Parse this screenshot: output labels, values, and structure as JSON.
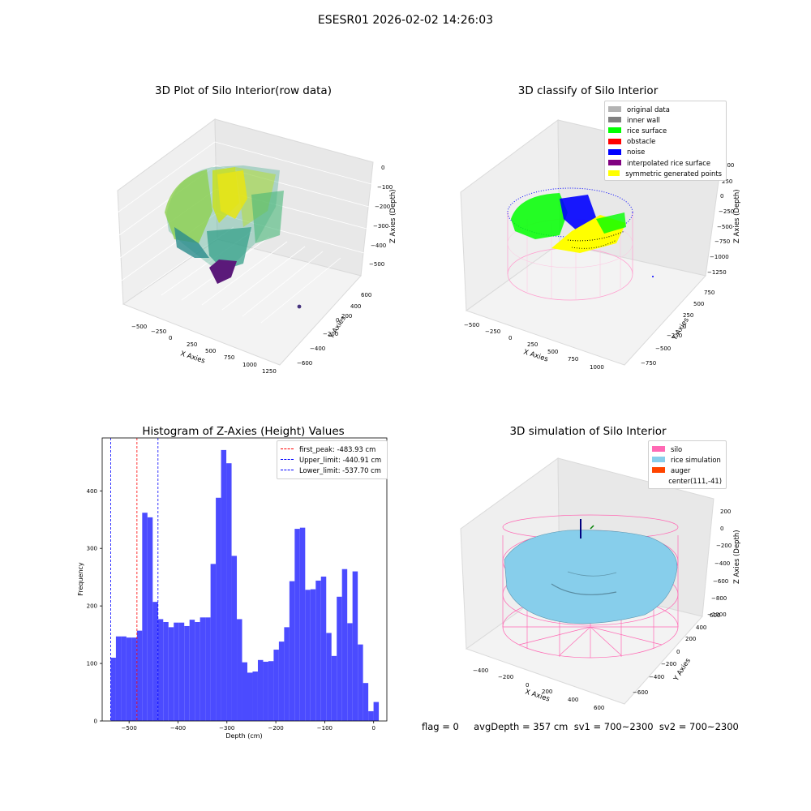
{
  "title": "ESESR01 2026-02-02 14:26:03",
  "status": {
    "text": "flag = 0     avgDepth = 357 cm  sv1 = 700~2300  sv2 = 700~2300"
  },
  "panels": {
    "raw": {
      "title": "3D Plot of Silo Interior(row data)",
      "xlabel": "X Axies",
      "ylabel": "Y Axies",
      "zlabel": "Z Axies (Depth)",
      "xticks": [
        "−500",
        "−250",
        "0",
        "250",
        "500",
        "750",
        "1000",
        "1250"
      ],
      "yticks": [
        "−600",
        "−400",
        "−200",
        "0",
        "200",
        "400",
        "600"
      ],
      "zticks": [
        "0",
        "−100",
        "−200",
        "−300",
        "−400",
        "−500"
      ]
    },
    "classify": {
      "title": "3D classify of Silo Interior",
      "xlabel": "X Axies",
      "ylabel": "Y Axies",
      "zlabel": "Z Axies (Depth)",
      "xticks": [
        "−500",
        "−250",
        "0",
        "250",
        "500",
        "750",
        "1000"
      ],
      "yticks": [
        "−750",
        "−500",
        "−250",
        "0",
        "250",
        "500",
        "750"
      ],
      "zticks": [
        "500",
        "250",
        "0",
        "−250",
        "−500",
        "−750",
        "−1000",
        "−1250"
      ],
      "legend": [
        {
          "label": "original data",
          "color": "#b3b3b3"
        },
        {
          "label": "inner wall",
          "color": "#808080"
        },
        {
          "label": "rice surface",
          "color": "#00ff00"
        },
        {
          "label": "obstacle",
          "color": "#ff0000"
        },
        {
          "label": "noise",
          "color": "#0000ff"
        },
        {
          "label": "interpolated rice surface",
          "color": "#800080"
        },
        {
          "label": "symmetric generated points",
          "color": "#ffff00"
        }
      ]
    },
    "simulation": {
      "title": "3D simulation of Silo Interior",
      "xlabel": "X Axies",
      "ylabel": "Y Axies",
      "zlabel": "Z Axies (Depth)",
      "xticks": [
        "−400",
        "−200",
        "0",
        "200",
        "400",
        "600"
      ],
      "yticks": [
        "−600",
        "−400",
        "−200",
        "0",
        "200",
        "400",
        "600"
      ],
      "zticks": [
        "200",
        "0",
        "−200",
        "−400",
        "−600",
        "−800",
        "−1000"
      ],
      "legend": [
        {
          "label": "silo",
          "color": "#ff69b4"
        },
        {
          "label": "rice simulation",
          "color": "#87ceeb"
        },
        {
          "label": "auger",
          "color": "#ff4500"
        },
        {
          "label": "center(111,-41)",
          "color": ""
        }
      ]
    }
  },
  "chart_data": [
    {
      "type": "bar",
      "title": "Histogram of Z-Axies (Height) Values",
      "xlabel": "Depth (cm)",
      "ylabel": "Frequency",
      "xlim": [
        -555,
        27
      ],
      "ylim": [
        0,
        492
      ],
      "xticks": [
        -500,
        -400,
        -300,
        -200,
        -100,
        0
      ],
      "xtick_labels": [
        "−500",
        "−400",
        "−300",
        "−200",
        "−100",
        "0"
      ],
      "yticks": [
        0,
        100,
        200,
        300,
        400
      ],
      "bar_color": "#4b4bff",
      "bin_start": -537.7,
      "bin_width": 10.75,
      "values": [
        110,
        147,
        147,
        145,
        145,
        157,
        362,
        354,
        207,
        177,
        172,
        163,
        171,
        171,
        165,
        176,
        172,
        180,
        180,
        273,
        388,
        471,
        448,
        287,
        177,
        102,
        84,
        86,
        106,
        103,
        104,
        124,
        138,
        163,
        243,
        334,
        336,
        228,
        229,
        244,
        251,
        153,
        113,
        216,
        264,
        170,
        260,
        133,
        66,
        17,
        33
      ],
      "vlines": [
        {
          "label": "first_peak: -483.93 cm",
          "x": -483.93,
          "color": "#ff0000"
        },
        {
          "label": "Upper_limit: -440.91 cm",
          "x": -440.91,
          "color": "#0000ff"
        },
        {
          "label": "Lower_limit: -537.70 cm",
          "x": -537.7,
          "color": "#0000ff"
        }
      ],
      "legend_position": "upper right"
    }
  ]
}
